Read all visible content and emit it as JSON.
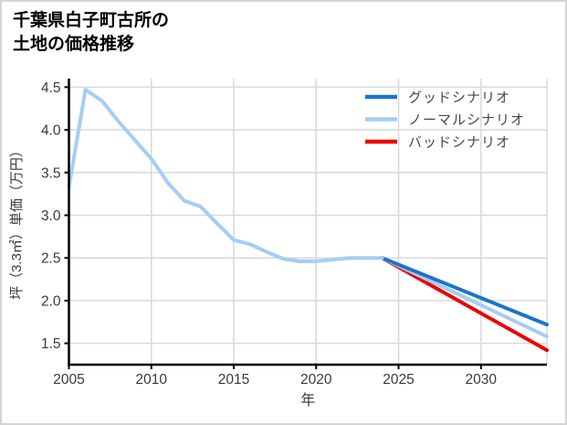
{
  "title": {
    "line1": "千葉県白子町古所の",
    "line2": "土地の価格推移"
  },
  "chart_data": {
    "type": "line",
    "title": "千葉県白子町古所の土地の価格推移",
    "xlabel": "年",
    "ylabel": "坪（3.3㎡）単価（万円）",
    "xlim": [
      2005,
      2034
    ],
    "ylim": [
      1.25,
      4.6
    ],
    "xticks": [
      2005,
      2010,
      2015,
      2020,
      2025,
      2030
    ],
    "yticks": [
      1.5,
      2.0,
      2.5,
      3.0,
      3.5,
      4.0,
      4.5
    ],
    "grid": true,
    "legend_position": "top-right",
    "colors": {
      "good": "#1b75c8",
      "normal": "#a5cdf3",
      "bad": "#ee0000",
      "history": "#a5cdf3",
      "gridline": "#d9d9d9",
      "axis": "#000000",
      "tick_text": "#3a3a3a",
      "legend_text": "#474747"
    },
    "series": [
      {
        "id": "history",
        "in_legend": false,
        "color_key": "history",
        "x": [
          2005,
          2006,
          2007,
          2008,
          2009,
          2010,
          2011,
          2012,
          2013,
          2014,
          2015,
          2016,
          2017,
          2018,
          2019,
          2020,
          2021,
          2022,
          2023,
          2024
        ],
        "values": [
          3.33,
          4.47,
          4.34,
          4.1,
          3.88,
          3.66,
          3.38,
          3.17,
          3.1,
          2.9,
          2.71,
          2.66,
          2.57,
          2.49,
          2.46,
          2.46,
          2.48,
          2.5,
          2.5,
          2.5
        ]
      },
      {
        "id": "good",
        "name": "グッドシナリオ",
        "in_legend": true,
        "color_key": "good",
        "x": [
          2024,
          2034
        ],
        "values": [
          2.5,
          1.72
        ]
      },
      {
        "id": "normal",
        "name": "ノーマルシナリオ",
        "in_legend": true,
        "color_key": "normal",
        "x": [
          2024,
          2034
        ],
        "values": [
          2.5,
          1.58
        ]
      },
      {
        "id": "bad",
        "name": "バッドシナリオ",
        "in_legend": true,
        "color_key": "bad",
        "x": [
          2024,
          2034
        ],
        "values": [
          2.5,
          1.42
        ]
      }
    ]
  }
}
